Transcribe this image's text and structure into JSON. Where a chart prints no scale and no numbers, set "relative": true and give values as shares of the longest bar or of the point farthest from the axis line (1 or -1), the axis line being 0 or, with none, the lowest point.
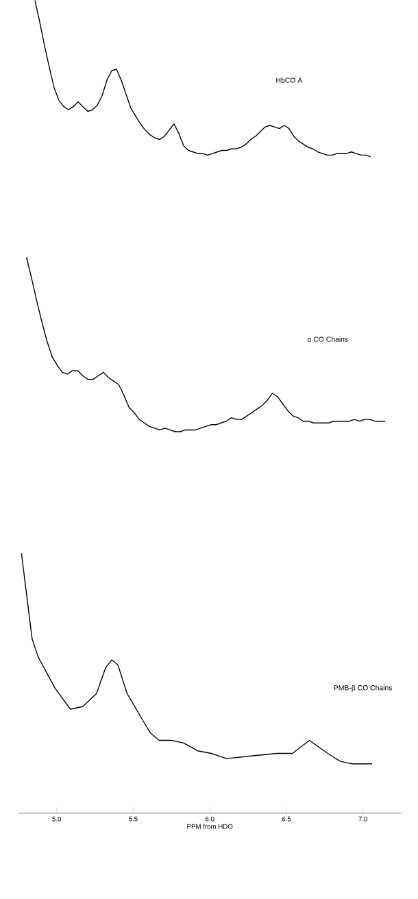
{
  "chart_data": [
    {
      "type": "line",
      "relative": true,
      "tick_labels": false,
      "categories": [
        null,
        null,
        null,
        null,
        null,
        null,
        null,
        null,
        null,
        null,
        null,
        null,
        null,
        null,
        null,
        null,
        null,
        null,
        null,
        null,
        null,
        null,
        null,
        null,
        null,
        null,
        null,
        null,
        null,
        null,
        null,
        null,
        null,
        null,
        null,
        null,
        null,
        null,
        null,
        null,
        null,
        null,
        null,
        null,
        null,
        null,
        null,
        null,
        null,
        null,
        null,
        null,
        null,
        null,
        null,
        null,
        null,
        null,
        null,
        null,
        null,
        null,
        null,
        null,
        null,
        null,
        null,
        null,
        null,
        null,
        null
      ],
      "series": [
        {
          "name": "HbCO A",
          "color": "#000000",
          "values": [
            1.0,
            0.86,
            0.71,
            0.57,
            0.44,
            0.36,
            0.32,
            0.3,
            0.32,
            0.35,
            0.32,
            0.29,
            0.3,
            0.33,
            0.39,
            0.49,
            0.55,
            0.56,
            0.49,
            0.4,
            0.31,
            0.26,
            0.21,
            0.17,
            0.14,
            0.12,
            0.11,
            0.13,
            0.17,
            0.21,
            0.15,
            0.07,
            0.04,
            0.03,
            0.02,
            0.02,
            0.01,
            0.02,
            0.03,
            0.04,
            0.04,
            0.05,
            0.05,
            0.06,
            0.08,
            0.11,
            0.13,
            0.16,
            0.19,
            0.2,
            0.19,
            0.18,
            0.2,
            0.18,
            0.13,
            0.1,
            0.08,
            0.06,
            0.05,
            0.03,
            0.02,
            0.01,
            0.01,
            0.02,
            0.02,
            0.02,
            0.03,
            0.02,
            0.01,
            0.01,
            0.0
          ]
        }
      ]
    },
    {
      "type": "line",
      "relative": true,
      "tick_labels": false,
      "categories": [
        null,
        null,
        null,
        null,
        null,
        null,
        null,
        null,
        null,
        null,
        null,
        null,
        null,
        null,
        null,
        null,
        null,
        null,
        null,
        null,
        null,
        null,
        null,
        null,
        null,
        null,
        null,
        null,
        null,
        null,
        null,
        null,
        null,
        null,
        null,
        null,
        null,
        null,
        null,
        null,
        null,
        null,
        null,
        null,
        null,
        null,
        null,
        null,
        null,
        null,
        null,
        null,
        null,
        null,
        null,
        null,
        null,
        null,
        null,
        null,
        null,
        null,
        null,
        null,
        null,
        null,
        null,
        null,
        null,
        null,
        null
      ],
      "series": [
        {
          "name": "α CO Chains",
          "color": "#000000",
          "values": [
            1.0,
            0.88,
            0.75,
            0.63,
            0.52,
            0.43,
            0.38,
            0.34,
            0.33,
            0.35,
            0.35,
            0.32,
            0.3,
            0.3,
            0.32,
            0.34,
            0.31,
            0.29,
            0.27,
            0.21,
            0.14,
            0.11,
            0.07,
            0.05,
            0.03,
            0.02,
            0.01,
            0.02,
            0.01,
            0.0,
            0.0,
            0.01,
            0.01,
            0.01,
            0.02,
            0.03,
            0.04,
            0.04,
            0.05,
            0.06,
            0.08,
            0.07,
            0.07,
            0.09,
            0.11,
            0.13,
            0.15,
            0.18,
            0.22,
            0.2,
            0.16,
            0.12,
            0.09,
            0.08,
            0.06,
            0.06,
            0.05,
            0.05,
            0.05,
            0.05,
            0.06,
            0.06,
            0.06,
            0.06,
            0.07,
            0.06,
            0.07,
            0.07,
            0.06,
            0.06,
            0.06
          ]
        }
      ]
    },
    {
      "type": "line",
      "relative": true,
      "xlim": [
        4.75,
        7.25
      ],
      "tick_labels": "x",
      "xlabel": "PPM from HDO",
      "xticks": [
        {
          "value": 5,
          "label": "5.0"
        },
        5.5,
        {
          "value": 6,
          "label": "6.0"
        },
        6.5,
        {
          "value": 7,
          "label": "7.0"
        }
      ],
      "x": [
        4.77,
        4.84,
        4.88,
        4.99,
        5.09,
        5.17,
        5.26,
        5.32,
        5.36,
        5.4,
        5.46,
        5.57,
        5.61,
        5.67,
        5.75,
        5.83,
        5.92,
        6.01,
        6.11,
        6.27,
        6.44,
        6.54,
        6.65,
        6.77,
        6.85,
        6.93,
        7.06
      ],
      "series": [
        {
          "name": "PMB-β CO Chains",
          "color": "#000000",
          "values": [
            1.0,
            0.67,
            0.6,
            0.48,
            0.4,
            0.41,
            0.46,
            0.56,
            0.59,
            0.57,
            0.46,
            0.35,
            0.31,
            0.28,
            0.28,
            0.27,
            0.24,
            0.23,
            0.21,
            0.22,
            0.23,
            0.23,
            0.28,
            0.23,
            0.2,
            0.19,
            0.19
          ]
        }
      ]
    }
  ]
}
